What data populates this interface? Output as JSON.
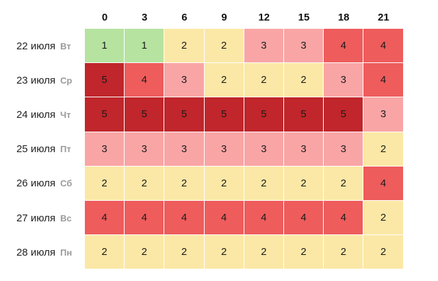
{
  "chart_data": {
    "type": "heatmap",
    "x": [
      "0",
      "3",
      "6",
      "9",
      "12",
      "15",
      "18",
      "21"
    ],
    "rows": [
      {
        "date": "22 июля",
        "dow": "Вт",
        "values": [
          1,
          1,
          2,
          2,
          3,
          3,
          4,
          4
        ]
      },
      {
        "date": "23 июля",
        "dow": "Ср",
        "values": [
          5,
          4,
          3,
          2,
          2,
          2,
          3,
          4
        ]
      },
      {
        "date": "24 июля",
        "dow": "Чт",
        "values": [
          5,
          5,
          5,
          5,
          5,
          5,
          5,
          3
        ]
      },
      {
        "date": "25 июля",
        "dow": "Пт",
        "values": [
          3,
          3,
          3,
          3,
          3,
          3,
          3,
          2
        ]
      },
      {
        "date": "26 июля",
        "dow": "Сб",
        "values": [
          2,
          2,
          2,
          2,
          2,
          2,
          2,
          4
        ]
      },
      {
        "date": "27 июля",
        "dow": "Вс",
        "values": [
          4,
          4,
          4,
          4,
          4,
          4,
          4,
          2
        ]
      },
      {
        "date": "28 июля",
        "dow": "Пн",
        "values": [
          2,
          2,
          2,
          2,
          2,
          2,
          2,
          2
        ]
      }
    ],
    "colors": {
      "1": "#b6e3a0",
      "2": "#fbe8a6",
      "3": "#f9a5a5",
      "4": "#ee5c5c",
      "5": "#c0262b"
    }
  }
}
